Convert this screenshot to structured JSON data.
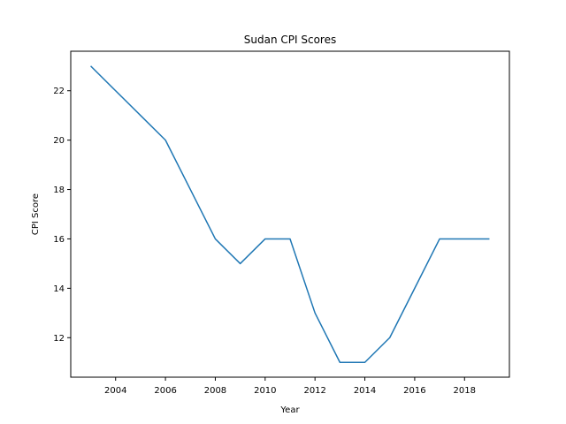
{
  "chart_data": {
    "type": "line",
    "title": "Sudan CPI Scores",
    "xlabel": "Year",
    "ylabel": "CPI Score",
    "x": [
      2003,
      2004,
      2005,
      2006,
      2007,
      2008,
      2009,
      2010,
      2011,
      2012,
      2013,
      2014,
      2015,
      2016,
      2017,
      2018,
      2019
    ],
    "series": [
      {
        "values": [
          23,
          22,
          21,
          20,
          18,
          16,
          15,
          16,
          16,
          13,
          11,
          11,
          12,
          14,
          16,
          16,
          16
        ],
        "color": "#1f77b4"
      }
    ],
    "xlim": [
      2002.2,
      2019.8
    ],
    "ylim": [
      10.4,
      23.6
    ],
    "xticks": [
      2004,
      2006,
      2008,
      2010,
      2012,
      2014,
      2016,
      2018
    ],
    "yticks": [
      12,
      14,
      16,
      18,
      20,
      22
    ],
    "grid": false,
    "legend": "none"
  }
}
